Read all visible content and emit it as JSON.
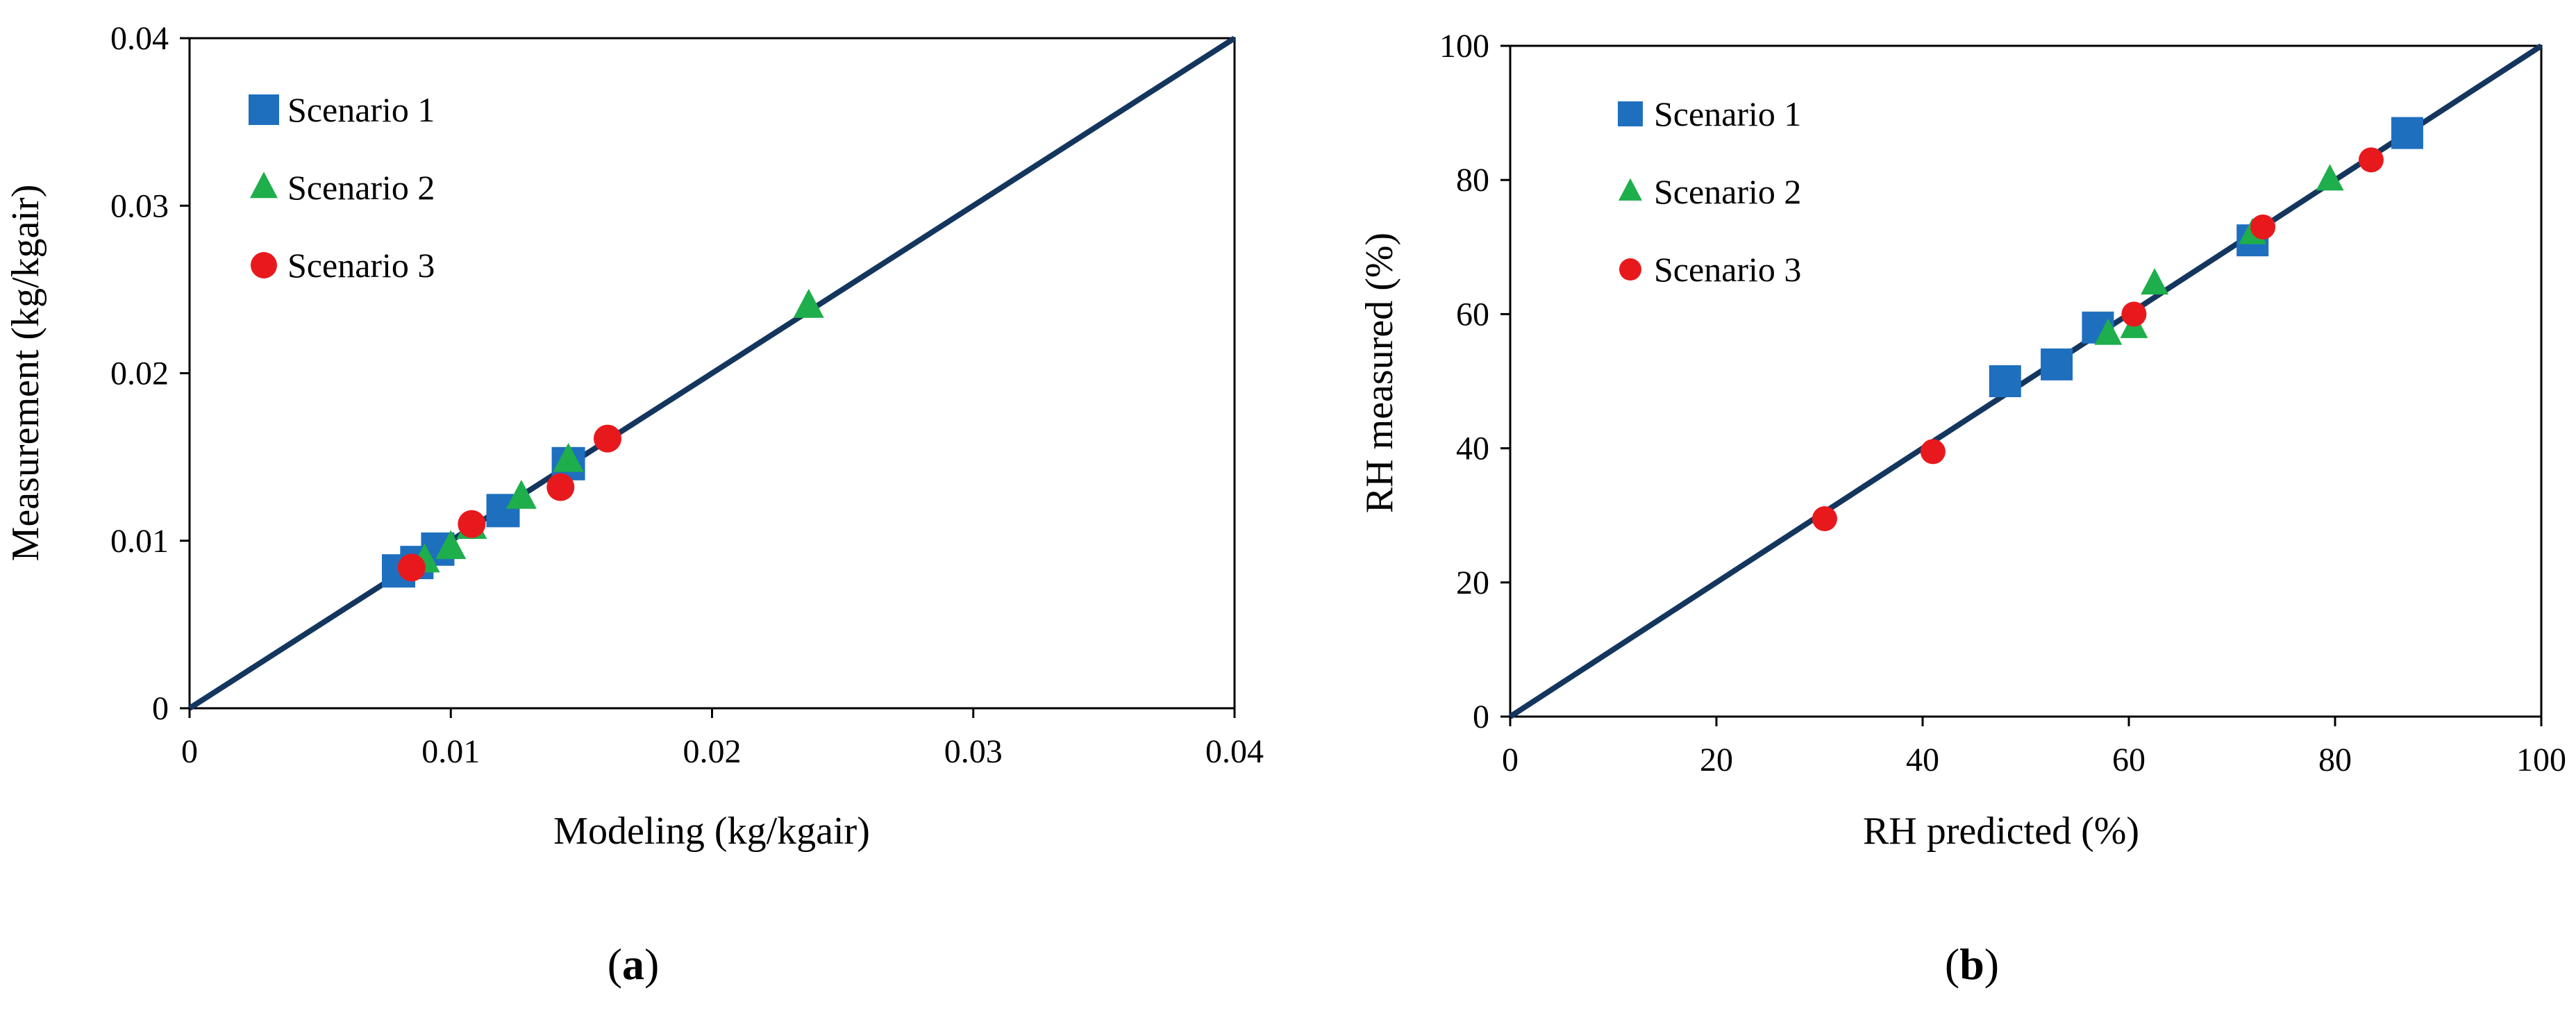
{
  "colors": {
    "scenario1": "#1F6FBF",
    "scenario2": "#1EAE4B",
    "scenario3": "#E8191D",
    "line": "#14365E",
    "axis": "#000000"
  },
  "chart_data": [
    {
      "type": "scatter",
      "panel_label": "a",
      "xlabel": "Modeling (kg/kgair)",
      "ylabel": "Measurement (kg/kgair)",
      "xlim": [
        0,
        0.04
      ],
      "ylim": [
        0,
        0.04
      ],
      "xticks": [
        "0",
        "0.01",
        "0.02",
        "0.03",
        "0.04"
      ],
      "yticks": [
        "0",
        "0.01",
        "0.02",
        "0.03",
        "0.04"
      ],
      "xtick_values": [
        0,
        0.01,
        0.02,
        0.03,
        0.04
      ],
      "ytick_values": [
        0,
        0.01,
        0.02,
        0.03,
        0.04
      ],
      "reference_line": [
        [
          0,
          0
        ],
        [
          0.04,
          0.04
        ]
      ],
      "legend_position": "top-left",
      "grid": false,
      "series": [
        {
          "name": "Scenario 1",
          "marker": "square",
          "points": [
            [
              0.008,
              0.0082
            ],
            [
              0.0087,
              0.0087
            ],
            [
              0.0095,
              0.0095
            ],
            [
              0.012,
              0.0118
            ],
            [
              0.0145,
              0.0146
            ]
          ]
        },
        {
          "name": "Scenario 2",
          "marker": "triangle",
          "points": [
            [
              0.009,
              0.0088
            ],
            [
              0.01,
              0.0096
            ],
            [
              0.0108,
              0.0108
            ],
            [
              0.0127,
              0.0126
            ],
            [
              0.0145,
              0.0148
            ],
            [
              0.0237,
              0.024
            ]
          ]
        },
        {
          "name": "Scenario 3",
          "marker": "circle",
          "points": [
            [
              0.0085,
              0.0084
            ],
            [
              0.0108,
              0.011
            ],
            [
              0.0142,
              0.0132
            ],
            [
              0.016,
              0.0161
            ]
          ]
        }
      ]
    },
    {
      "type": "scatter",
      "panel_label": "b",
      "xlabel": "RH predicted (%)",
      "ylabel": "RH measured (%)",
      "xlim": [
        0,
        100
      ],
      "ylim": [
        0,
        100
      ],
      "xticks": [
        "0",
        "20",
        "40",
        "60",
        "80",
        "100"
      ],
      "yticks": [
        "0",
        "20",
        "40",
        "60",
        "80",
        "100"
      ],
      "xtick_values": [
        0,
        20,
        40,
        60,
        80,
        100
      ],
      "ytick_values": [
        0,
        20,
        40,
        60,
        80,
        100
      ],
      "reference_line": [
        [
          0,
          0
        ],
        [
          100,
          100
        ]
      ],
      "legend_position": "top-left",
      "grid": false,
      "series": [
        {
          "name": "Scenario 1",
          "marker": "square",
          "points": [
            [
              48,
              50
            ],
            [
              53,
              52.5
            ],
            [
              57,
              58
            ],
            [
              72,
              71
            ],
            [
              87,
              87
            ]
          ]
        },
        {
          "name": "Scenario 2",
          "marker": "triangle",
          "points": [
            [
              58,
              57
            ],
            [
              60.5,
              58
            ],
            [
              62.5,
              64.5
            ],
            [
              72,
              72
            ],
            [
              79.5,
              80
            ]
          ]
        },
        {
          "name": "Scenario 3",
          "marker": "circle",
          "points": [
            [
              30.5,
              29.5
            ],
            [
              41,
              39.5
            ],
            [
              60.5,
              60
            ],
            [
              73,
              73
            ],
            [
              83.5,
              83
            ]
          ]
        }
      ]
    }
  ]
}
